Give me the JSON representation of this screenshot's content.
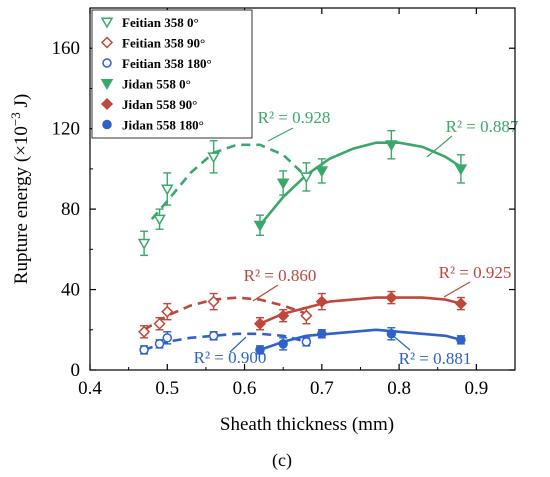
{
  "chart_data": {
    "type": "scatter",
    "panel_label": "(c)",
    "xlabel": "Sheath thickness (mm)",
    "ylabel_main": "Rupture energy (×10",
    "ylabel_exp": "−3",
    "ylabel_unit": " J)",
    "xlim": [
      0.4,
      0.95
    ],
    "ylim": [
      0,
      180
    ],
    "x_ticks": [
      0.4,
      0.5,
      0.6,
      0.7,
      0.8,
      0.9
    ],
    "x_tick_labels": [
      "0.4",
      "0.5",
      "0.6",
      "0.7",
      "0.8",
      "0.9"
    ],
    "y_ticks": [
      0,
      40,
      80,
      120,
      160
    ],
    "y_tick_labels": [
      "0",
      "40",
      "80",
      "120",
      "160"
    ],
    "legend_position": "top-left",
    "colors": {
      "green": "#3aa86a",
      "red": "#c0473b",
      "blue": "#2e62c9"
    },
    "series": [
      {
        "name": "Feitian 358  0°",
        "color": "#3aa86a",
        "marker": "triangle-down",
        "filled": false,
        "x": [
          0.47,
          0.49,
          0.5,
          0.56,
          0.68
        ],
        "y": [
          63,
          75,
          90,
          106,
          96
        ],
        "err": [
          6,
          5,
          8,
          8,
          7
        ],
        "fit_x": [
          0.48,
          0.5,
          0.53,
          0.56,
          0.59,
          0.62,
          0.65,
          0.68
        ],
        "fit_y": [
          75,
          84,
          98,
          108,
          112,
          112,
          107,
          96
        ],
        "fit_style": "dashed",
        "r2": "R² = 0.928"
      },
      {
        "name": "Feitian 358  90°",
        "color": "#c0473b",
        "marker": "diamond",
        "filled": false,
        "x": [
          0.47,
          0.49,
          0.5,
          0.56,
          0.68
        ],
        "y": [
          19,
          23,
          29,
          34,
          27
        ],
        "err": [
          3,
          3,
          4,
          4,
          4
        ],
        "fit_x": [
          0.47,
          0.5,
          0.53,
          0.56,
          0.59,
          0.62,
          0.65,
          0.68
        ],
        "fit_y": [
          20,
          27,
          32,
          35,
          36,
          35,
          32,
          28
        ],
        "fit_style": "dashed",
        "r2": "R² = 0.860"
      },
      {
        "name": "Feitian 358  180°",
        "color": "#2e62c9",
        "marker": "circle",
        "filled": false,
        "x": [
          0.47,
          0.49,
          0.5,
          0.56,
          0.68
        ],
        "y": [
          10,
          13,
          16,
          17,
          14
        ],
        "err": [
          2,
          2,
          3,
          2,
          2
        ],
        "fit_x": [
          0.47,
          0.5,
          0.53,
          0.56,
          0.59,
          0.62,
          0.65,
          0.68
        ],
        "fit_y": [
          10,
          14,
          16,
          17,
          18,
          18,
          17,
          14
        ],
        "fit_style": "dashed",
        "r2": "R² = 0.900"
      },
      {
        "name": "Jidan 558  0°",
        "color": "#3aa86a",
        "marker": "triangle-down",
        "filled": true,
        "x": [
          0.62,
          0.65,
          0.7,
          0.79,
          0.88
        ],
        "y": [
          72,
          93,
          99,
          112,
          100
        ],
        "err": [
          5,
          6,
          6,
          7,
          7
        ],
        "fit_x": [
          0.62,
          0.65,
          0.68,
          0.71,
          0.74,
          0.77,
          0.8,
          0.83,
          0.86,
          0.88
        ],
        "fit_y": [
          72,
          86,
          97,
          105,
          110,
          113,
          113,
          111,
          106,
          101
        ],
        "fit_style": "solid",
        "r2": "R² = 0.887"
      },
      {
        "name": "Jidan 558  90°",
        "color": "#c0473b",
        "marker": "diamond",
        "filled": true,
        "x": [
          0.62,
          0.65,
          0.7,
          0.79,
          0.88
        ],
        "y": [
          23,
          27,
          34,
          36,
          33
        ],
        "err": [
          3,
          3,
          4,
          3,
          3
        ],
        "fit_x": [
          0.62,
          0.65,
          0.68,
          0.71,
          0.74,
          0.77,
          0.8,
          0.83,
          0.86,
          0.88
        ],
        "fit_y": [
          23,
          28,
          31,
          34,
          35,
          36,
          36,
          36,
          35,
          33
        ],
        "fit_style": "solid",
        "r2": "R² = 0.925"
      },
      {
        "name": "Jidan 558  180°",
        "color": "#2e62c9",
        "marker": "circle",
        "filled": true,
        "x": [
          0.62,
          0.65,
          0.7,
          0.79,
          0.88
        ],
        "y": [
          10,
          13,
          18,
          18,
          15
        ],
        "err": [
          2,
          3,
          2,
          3,
          2
        ],
        "fit_x": [
          0.62,
          0.65,
          0.68,
          0.71,
          0.74,
          0.77,
          0.8,
          0.83,
          0.86,
          0.88
        ],
        "fit_y": [
          10,
          14,
          17,
          18,
          19,
          20,
          19,
          18,
          17,
          15
        ],
        "fit_style": "solid",
        "r2": "R² = 0.881"
      }
    ]
  }
}
